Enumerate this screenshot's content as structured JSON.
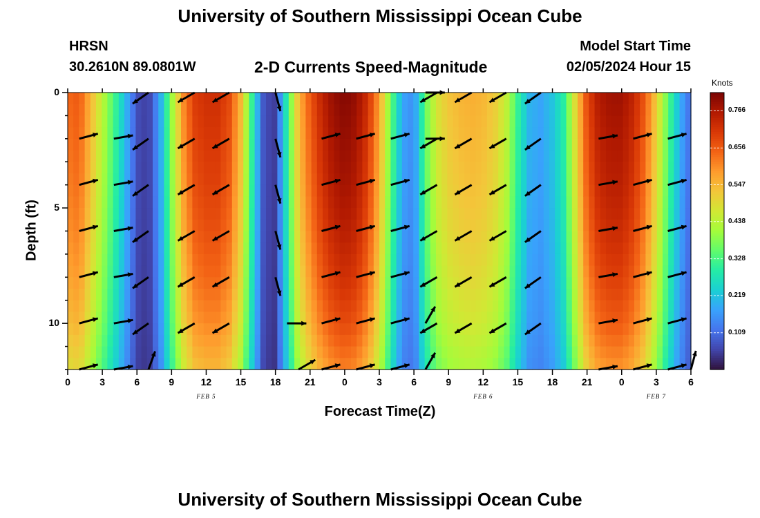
{
  "figure": {
    "title": "University of Southern Mississippi Ocean Cube",
    "station": "HRSN",
    "location": "30.2610N  89.0801W",
    "subtitle": "2-D Currents Speed-Magnitude",
    "model_start_label": "Model Start Time",
    "model_start_value": "02/05/2024 Hour 15",
    "footer_title": "University of Southern Mississippi Ocean Cube"
  },
  "chart_data": {
    "type": "heatmap",
    "title": "2-D Currents Speed-Magnitude",
    "xlabel": "Forecast Time(Z)",
    "ylabel": "Depth (ft)",
    "x_tick_labels": [
      "0",
      "3",
      "6",
      "9",
      "12",
      "15",
      "18",
      "21",
      "0",
      "3",
      "6",
      "9",
      "12",
      "15",
      "18",
      "21",
      "0",
      "3",
      "6"
    ],
    "x_range_hours": [
      0,
      54
    ],
    "date_labels": [
      {
        "text": "FEB 5",
        "hour": 12
      },
      {
        "text": "FEB 6",
        "hour": 36
      },
      {
        "text": "FEB 7",
        "hour": 51
      }
    ],
    "y_ticks": [
      0,
      5,
      10
    ],
    "ylim": [
      0,
      12
    ],
    "y_inverted": true,
    "colorbar": {
      "unit": "Knots",
      "ticks": [
        0.109,
        0.219,
        0.328,
        0.438,
        0.547,
        0.656,
        0.766
      ],
      "range": [
        0.0,
        0.82
      ],
      "colors": [
        "#30123b",
        "#4145ab",
        "#4675ed",
        "#39a2fc",
        "#1bcfd4",
        "#24eca6",
        "#61fc6c",
        "#a4fc3b",
        "#d1e834",
        "#f3c63a",
        "#fe9b2d",
        "#f36315",
        "#d93806",
        "#b11901",
        "#7a0403"
      ]
    },
    "speed_timeseries_hours": [
      0,
      1,
      2,
      3,
      4,
      5,
      6,
      7,
      8,
      9,
      10,
      11,
      12,
      13,
      14,
      15,
      16,
      17,
      18,
      19,
      20,
      21,
      22,
      23,
      24,
      25,
      26,
      27,
      28,
      29,
      30,
      31,
      32,
      33,
      34,
      35,
      36,
      37,
      38,
      39,
      40,
      41,
      42,
      43,
      44,
      45,
      46,
      47,
      48,
      49,
      50,
      51,
      52,
      53,
      54
    ],
    "surface_speed_knots": [
      0.64,
      0.66,
      0.55,
      0.44,
      0.33,
      0.21,
      0.07,
      0.05,
      0.18,
      0.4,
      0.6,
      0.7,
      0.72,
      0.72,
      0.68,
      0.55,
      0.3,
      0.07,
      0.05,
      0.3,
      0.55,
      0.66,
      0.74,
      0.79,
      0.81,
      0.79,
      0.72,
      0.58,
      0.36,
      0.18,
      0.15,
      0.36,
      0.48,
      0.53,
      0.55,
      0.56,
      0.55,
      0.52,
      0.45,
      0.31,
      0.2,
      0.18,
      0.22,
      0.3,
      0.5,
      0.68,
      0.76,
      0.78,
      0.78,
      0.74,
      0.66,
      0.52,
      0.35,
      0.2,
      0.1
    ],
    "depth_factor_ft": [
      0,
      2,
      4,
      6,
      8,
      10,
      12
    ],
    "depth_factor": [
      1.0,
      0.98,
      0.96,
      0.93,
      0.89,
      0.84,
      0.76
    ],
    "arrow_depths_ft": [
      0,
      2,
      4,
      6,
      8,
      10,
      12
    ],
    "arrows": [
      {
        "hour": 1,
        "dir": 75,
        "depths": [
          2,
          4,
          6,
          8,
          10,
          12
        ]
      },
      {
        "hour": 4,
        "dir": 80,
        "depths": [
          2,
          4,
          6,
          8,
          10,
          12
        ]
      },
      {
        "hour": 7,
        "dir": 235,
        "depths": [
          0,
          2,
          4,
          6,
          8,
          10
        ]
      },
      {
        "hour": 7,
        "dir": 20,
        "depths": [
          12
        ]
      },
      {
        "hour": 11,
        "dir": 240,
        "depths": [
          0,
          2,
          4,
          6,
          8,
          10
        ]
      },
      {
        "hour": 14,
        "dir": 240,
        "depths": [
          0,
          2,
          4,
          6,
          8,
          10
        ]
      },
      {
        "hour": 18,
        "dir": 165,
        "depths": [
          0,
          2,
          4,
          6,
          8
        ]
      },
      {
        "hour": 19,
        "dir": 90,
        "depths": [
          10
        ]
      },
      {
        "hour": 20,
        "dir": 60,
        "depths": [
          12
        ]
      },
      {
        "hour": 22,
        "dir": 75,
        "depths": [
          2,
          4,
          6,
          8,
          10,
          12
        ]
      },
      {
        "hour": 25,
        "dir": 75,
        "depths": [
          2,
          4,
          6,
          8,
          10,
          12
        ]
      },
      {
        "hour": 28,
        "dir": 75,
        "depths": [
          2,
          4,
          6,
          8,
          10,
          12
        ]
      },
      {
        "hour": 31,
        "dir": 90,
        "depths": [
          0,
          2
        ]
      },
      {
        "hour": 32,
        "dir": 240,
        "depths": [
          0,
          2,
          4,
          6,
          8,
          10
        ]
      },
      {
        "hour": 31,
        "dir": 30,
        "depths": [
          10,
          12
        ]
      },
      {
        "hour": 35,
        "dir": 240,
        "depths": [
          0,
          2,
          4,
          6,
          8,
          10
        ]
      },
      {
        "hour": 38,
        "dir": 240,
        "depths": [
          0,
          2,
          4,
          6,
          8,
          10
        ]
      },
      {
        "hour": 41,
        "dir": 235,
        "depths": [
          0,
          2,
          4,
          6,
          8,
          10
        ]
      },
      {
        "hour": 46,
        "dir": 80,
        "depths": [
          2,
          4,
          6,
          8,
          10,
          12
        ]
      },
      {
        "hour": 49,
        "dir": 75,
        "depths": [
          2,
          4,
          6,
          8,
          10,
          12
        ]
      },
      {
        "hour": 52,
        "dir": 75,
        "depths": [
          2,
          4,
          6,
          8,
          10,
          12
        ]
      },
      {
        "hour": 54,
        "dir": 15,
        "depths": [
          12
        ]
      }
    ]
  }
}
